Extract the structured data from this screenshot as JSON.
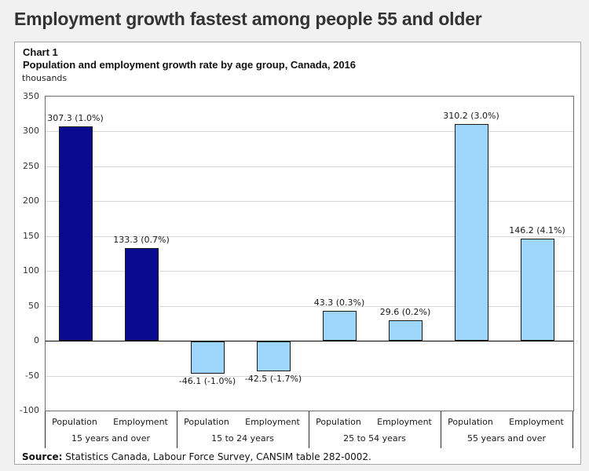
{
  "page_title": "Employment growth fastest among people 55 and older",
  "panel": {
    "chart_label": "Chart 1",
    "chart_title": "Population and employment growth rate by age group, Canada, 2016",
    "unit_label": "thousands",
    "source_label": "Source:",
    "source_text": " Statistics Canada, Labour Force Survey, CANSIM table 282-0002."
  },
  "colors": {
    "dark_bar": "#0a0a90",
    "light_bar": "#9dd5fb",
    "bar_border": "#1a1a1a",
    "gridline": "#d8d8d8",
    "zero_line": "#000000",
    "page_background": "#f1f1f1"
  },
  "chart_data": {
    "type": "bar",
    "title": "Population and employment growth rate by age group, Canada, 2016",
    "subtitle_label": "Chart 1",
    "ylabel": "thousands",
    "ylim": [
      -100,
      350
    ],
    "ytick_interval": 50,
    "grid": true,
    "legend": "none",
    "source": "Statistics Canada, Labour Force Survey, CANSIM table 282-0002.",
    "groups": [
      {
        "label": "15 years and over",
        "bars": [
          {
            "category": "Population",
            "value": 307.3,
            "growth_rate_pct": 1.0,
            "data_label": "307.3 (1.0%)",
            "color": "#0a0a90"
          },
          {
            "category": "Employment",
            "value": 133.3,
            "growth_rate_pct": 0.7,
            "data_label": "133.3 (0.7%)",
            "color": "#0a0a90"
          }
        ]
      },
      {
        "label": "15 to 24 years",
        "bars": [
          {
            "category": "Population",
            "value": -46.1,
            "growth_rate_pct": -1.0,
            "data_label": "-46.1 (-1.0%)",
            "color": "#9dd5fb"
          },
          {
            "category": "Employment",
            "value": -42.5,
            "growth_rate_pct": -1.7,
            "data_label": "-42.5 (-1.7%)",
            "color": "#9dd5fb"
          }
        ]
      },
      {
        "label": "25 to 54 years",
        "bars": [
          {
            "category": "Population",
            "value": 43.3,
            "growth_rate_pct": 0.3,
            "data_label": "43.3 (0.3%)",
            "color": "#9dd5fb"
          },
          {
            "category": "Employment",
            "value": 29.6,
            "growth_rate_pct": 0.2,
            "data_label": "29.6 (0.2%)",
            "color": "#9dd5fb"
          }
        ]
      },
      {
        "label": "55 years and over",
        "bars": [
          {
            "category": "Population",
            "value": 310.2,
            "growth_rate_pct": 3.0,
            "data_label": "310.2 (3.0%)",
            "color": "#9dd5fb"
          },
          {
            "category": "Employment",
            "value": 146.2,
            "growth_rate_pct": 4.1,
            "data_label": "146.2 (4.1%)",
            "color": "#9dd5fb"
          }
        ]
      }
    ]
  }
}
